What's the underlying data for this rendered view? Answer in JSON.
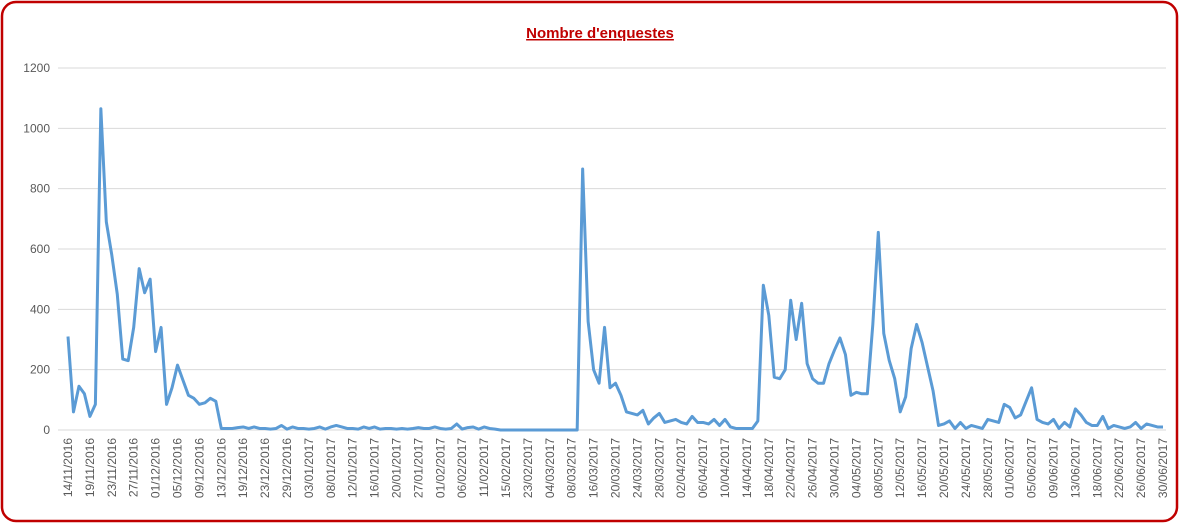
{
  "chart_data": {
    "type": "line",
    "title": "Nombre d'enquestes",
    "categories": [
      "14/11/2016",
      null,
      null,
      null,
      "19/11/2016",
      null,
      null,
      null,
      "23/11/2016",
      null,
      null,
      null,
      "27/11/2016",
      null,
      null,
      null,
      "01/12/2016",
      null,
      null,
      null,
      "05/12/2016",
      null,
      null,
      null,
      "09/12/2016",
      null,
      null,
      null,
      "13/12/2016",
      null,
      null,
      null,
      "19/12/2016",
      null,
      null,
      null,
      "23/12/2016",
      null,
      null,
      null,
      "29/12/2016",
      null,
      null,
      null,
      "03/01/2017",
      null,
      null,
      null,
      "08/01/2017",
      null,
      null,
      null,
      "12/01/2017",
      null,
      null,
      null,
      "16/01/2017",
      null,
      null,
      null,
      "20/01/2017",
      null,
      null,
      null,
      "27/01/2017",
      null,
      null,
      null,
      "01/02/2017",
      null,
      null,
      null,
      "06/02/2017",
      null,
      null,
      null,
      "11/02/2017",
      null,
      null,
      null,
      "15/02/2017",
      null,
      null,
      null,
      "23/02/2017",
      null,
      null,
      null,
      "04/03/2017",
      null,
      null,
      null,
      "08/03/2017",
      null,
      null,
      null,
      "16/03/2017",
      null,
      null,
      null,
      "20/03/2017",
      null,
      null,
      null,
      "24/03/2017",
      null,
      null,
      null,
      "28/03/2017",
      null,
      null,
      null,
      "02/04/2017",
      null,
      null,
      null,
      "06/04/2017",
      null,
      null,
      null,
      "10/04/2017",
      null,
      null,
      null,
      "14/04/2017",
      null,
      null,
      null,
      "18/04/2017",
      null,
      null,
      null,
      "22/04/2017",
      null,
      null,
      null,
      "26/04/2017",
      null,
      null,
      null,
      "30/04/2017",
      null,
      null,
      null,
      "04/05/2017",
      null,
      null,
      null,
      "08/05/2017",
      null,
      null,
      null,
      "12/05/2017",
      null,
      null,
      null,
      "16/05/2017",
      null,
      null,
      null,
      "20/05/2017",
      null,
      null,
      null,
      "24/05/2017",
      null,
      null,
      null,
      "28/05/2017",
      null,
      null,
      null,
      "01/06/2017",
      null,
      null,
      null,
      "05/06/2017",
      null,
      null,
      null,
      "09/06/2017",
      null,
      null,
      null,
      "13/06/2017",
      null,
      null,
      null,
      "18/06/2017",
      null,
      null,
      null,
      "22/06/2017",
      null,
      null,
      null,
      "26/06/2017",
      null,
      null,
      null,
      "30/06/2017"
    ],
    "values": [
      310,
      60,
      145,
      120,
      45,
      85,
      1065,
      690,
      580,
      450,
      235,
      230,
      340,
      535,
      455,
      500,
      260,
      340,
      85,
      140,
      215,
      165,
      115,
      105,
      85,
      90,
      105,
      95,
      5,
      5,
      5,
      8,
      10,
      5,
      10,
      5,
      5,
      3,
      5,
      15,
      3,
      10,
      5,
      5,
      3,
      5,
      10,
      3,
      10,
      15,
      10,
      5,
      5,
      3,
      10,
      5,
      10,
      3,
      5,
      5,
      3,
      5,
      3,
      5,
      8,
      5,
      5,
      10,
      5,
      3,
      5,
      20,
      3,
      8,
      10,
      3,
      10,
      5,
      3,
      0,
      0,
      0,
      0,
      0,
      0,
      0,
      0,
      0,
      0,
      0,
      0,
      0,
      0,
      0,
      865,
      360,
      200,
      155,
      340,
      140,
      155,
      115,
      60,
      55,
      50,
      65,
      20,
      40,
      55,
      25,
      30,
      35,
      25,
      20,
      45,
      25,
      25,
      20,
      35,
      15,
      35,
      10,
      5,
      5,
      5,
      5,
      30,
      480,
      380,
      175,
      170,
      200,
      430,
      300,
      420,
      220,
      170,
      155,
      155,
      220,
      265,
      305,
      250,
      115,
      125,
      120,
      120,
      350,
      655,
      320,
      230,
      170,
      60,
      110,
      270,
      350,
      290,
      210,
      130,
      15,
      20,
      30,
      5,
      25,
      5,
      15,
      10,
      5,
      35,
      30,
      25,
      85,
      75,
      40,
      50,
      95,
      140,
      35,
      25,
      20,
      35,
      5,
      25,
      10,
      70,
      50,
      25,
      15,
      15,
      45,
      5,
      15,
      10,
      5,
      10,
      25,
      5,
      20,
      15,
      10,
      10
    ],
    "color": "#5b9bd5",
    "ylim": [
      0,
      1200
    ],
    "yticks": [
      0,
      200,
      400,
      600,
      800,
      1000,
      1200
    ],
    "grid": true
  }
}
